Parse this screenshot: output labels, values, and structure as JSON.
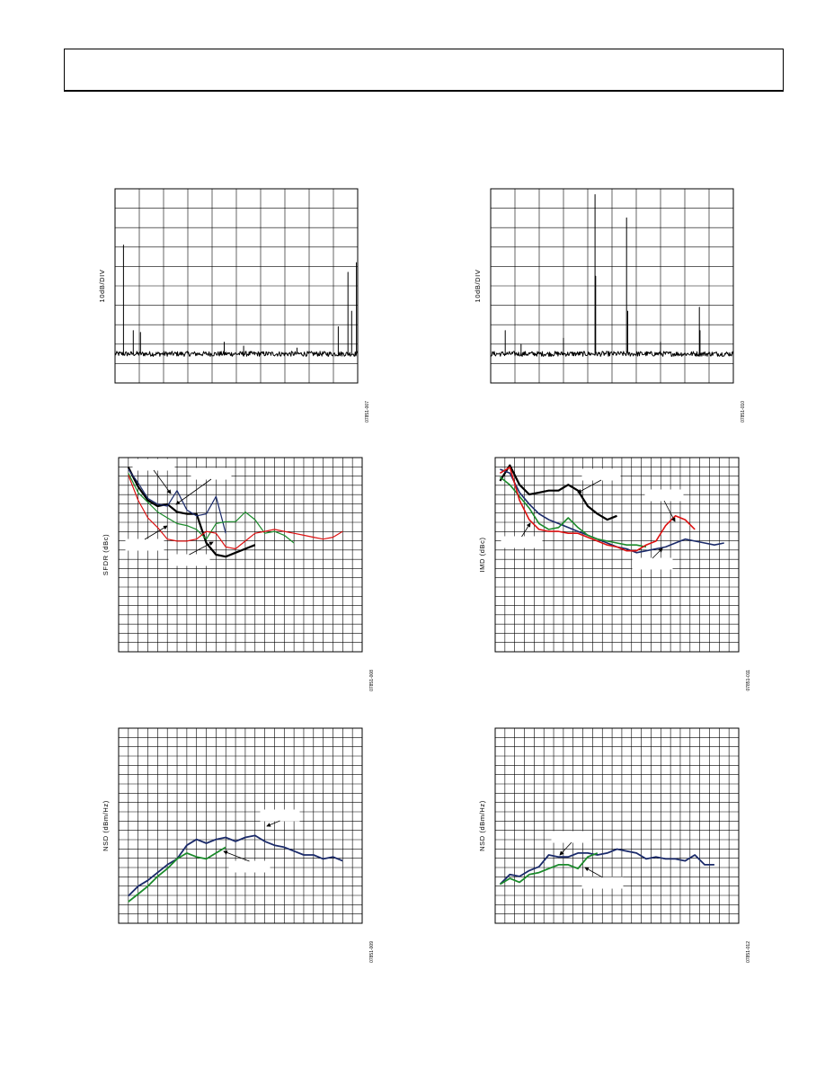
{
  "page": {
    "header_text": ""
  },
  "chart_data": [
    {
      "id": "spectrum-1",
      "type": "line",
      "ylabel": "10dB/DIV",
      "figure_id": "07851-007",
      "grid": true,
      "xgrid_divisions": 10,
      "ygrid_divisions": 10,
      "xlim": [
        0,
        100
      ],
      "ylim": [
        0,
        100
      ],
      "series": [
        {
          "color": "#000000",
          "width": 1,
          "noise_floor": 15,
          "noise_amplitude": 1.3,
          "spurs": [
            [
              3.5,
              56
            ],
            [
              7.5,
              12
            ],
            [
              10.5,
              11
            ],
            [
              45,
              6
            ],
            [
              53,
              4
            ],
            [
              75,
              3
            ],
            [
              92,
              14
            ],
            [
              96,
              42
            ],
            [
              97.5,
              22
            ],
            [
              99.5,
              47
            ]
          ]
        }
      ]
    },
    {
      "id": "spectrum-2",
      "type": "line",
      "ylabel": "10dB/DIV",
      "figure_id": "07851-010",
      "grid": true,
      "xgrid_divisions": 10,
      "ygrid_divisions": 10,
      "xlim": [
        0,
        100
      ],
      "ylim": [
        0,
        100
      ],
      "series": [
        {
          "color": "#000000",
          "width": 1,
          "noise_floor": 15,
          "noise_amplitude": 1.3,
          "spurs": [
            [
              6,
              12
            ],
            [
              12.5,
              5
            ],
            [
              30,
              8
            ],
            [
              43,
              82
            ],
            [
              43.3,
              40
            ],
            [
              56,
              70
            ],
            [
              56.4,
              22
            ],
            [
              70,
              6
            ],
            [
              86,
              24
            ],
            [
              86.3,
              12
            ]
          ]
        }
      ]
    },
    {
      "id": "sfdr-chart",
      "type": "line",
      "ylabel": "SFDR (dBc)",
      "figure_id": "07851-008",
      "grid": true,
      "xgrid_divisions": 25,
      "ygrid_divisions": 21,
      "xlim": [
        0,
        100
      ],
      "ylim": [
        0,
        100
      ],
      "series": [
        {
          "color": "#000000",
          "width": 2.2,
          "points": [
            [
              4,
              95
            ],
            [
              8,
              85
            ],
            [
              12,
              78
            ],
            [
              16,
              75
            ],
            [
              20,
              76
            ],
            [
              24,
              72
            ],
            [
              28,
              71
            ],
            [
              32,
              71
            ],
            [
              36,
              56
            ],
            [
              40,
              50
            ],
            [
              44,
              49
            ],
            [
              48,
              51
            ],
            [
              52,
              53
            ],
            [
              56,
              55
            ]
          ]
        },
        {
          "color": "#1a2a6a",
          "width": 1.2,
          "points": [
            [
              4,
              94
            ],
            [
              8,
              87
            ],
            [
              12,
              79
            ],
            [
              16,
              76
            ],
            [
              20,
              75
            ],
            [
              24,
              83
            ],
            [
              28,
              73
            ],
            [
              32,
              70
            ],
            [
              36,
              71
            ],
            [
              40,
              80
            ],
            [
              44,
              61
            ]
          ]
        },
        {
          "color": "#1a8a2a",
          "width": 1.2,
          "points": [
            [
              4,
              92
            ],
            [
              8,
              82
            ],
            [
              12,
              77
            ],
            [
              16,
              72
            ],
            [
              20,
              69
            ],
            [
              24,
              66
            ],
            [
              28,
              65
            ],
            [
              32,
              63
            ],
            [
              36,
              58
            ],
            [
              40,
              66
            ],
            [
              44,
              67
            ],
            [
              48,
              67
            ],
            [
              52,
              72
            ],
            [
              56,
              68
            ],
            [
              60,
              61
            ],
            [
              64,
              62
            ],
            [
              68,
              60
            ],
            [
              72,
              56
            ]
          ]
        },
        {
          "color": "#dd1111",
          "width": 1.2,
          "points": [
            [
              4,
              91
            ],
            [
              8,
              78
            ],
            [
              12,
              69
            ],
            [
              16,
              64
            ],
            [
              20,
              58
            ],
            [
              24,
              57
            ],
            [
              28,
              57
            ],
            [
              32,
              58
            ],
            [
              36,
              62
            ],
            [
              40,
              61
            ],
            [
              44,
              54
            ],
            [
              48,
              53
            ],
            [
              52,
              57
            ],
            [
              56,
              61
            ],
            [
              60,
              62
            ],
            [
              64,
              63
            ],
            [
              68,
              62
            ],
            [
              72,
              61
            ],
            [
              76,
              60
            ],
            [
              80,
              59
            ],
            [
              84,
              58
            ],
            [
              88,
              59
            ],
            [
              92,
              62
            ]
          ]
        }
      ]
    },
    {
      "id": "imd-chart",
      "type": "line",
      "ylabel": "IMD (dBc)",
      "figure_id": "07851-011",
      "grid": true,
      "xgrid_divisions": 25,
      "ygrid_divisions": 21,
      "xlim": [
        0,
        100
      ],
      "ylim": [
        0,
        100
      ],
      "series": [
        {
          "color": "#000000",
          "width": 2.2,
          "points": [
            [
              2,
              88
            ],
            [
              6,
              96
            ],
            [
              10,
              86
            ],
            [
              14,
              81
            ],
            [
              18,
              82
            ],
            [
              22,
              83
            ],
            [
              26,
              83
            ],
            [
              30,
              86
            ],
            [
              34,
              83
            ],
            [
              38,
              75
            ],
            [
              42,
              71
            ],
            [
              46,
              68
            ],
            [
              50,
              70
            ]
          ]
        },
        {
          "color": "#1a2a6a",
          "width": 1.6,
          "points": [
            [
              2,
              94
            ],
            [
              6,
              92
            ],
            [
              10,
              82
            ],
            [
              14,
              76
            ],
            [
              18,
              71
            ],
            [
              22,
              68
            ],
            [
              26,
              66
            ],
            [
              30,
              64
            ],
            [
              34,
              62
            ],
            [
              38,
              60
            ],
            [
              42,
              58
            ],
            [
              46,
              56
            ],
            [
              50,
              54
            ],
            [
              54,
              53
            ],
            [
              58,
              51
            ],
            [
              62,
              52
            ],
            [
              66,
              53
            ],
            [
              70,
              54
            ],
            [
              74,
              56
            ],
            [
              78,
              58
            ],
            [
              82,
              57
            ],
            [
              86,
              56
            ],
            [
              90,
              55
            ],
            [
              94,
              56
            ]
          ]
        },
        {
          "color": "#1a8a2a",
          "width": 1.6,
          "points": [
            [
              2,
              90
            ],
            [
              6,
              86
            ],
            [
              10,
              80
            ],
            [
              14,
              74
            ],
            [
              18,
              66
            ],
            [
              22,
              63
            ],
            [
              26,
              64
            ],
            [
              30,
              69
            ],
            [
              34,
              64
            ],
            [
              38,
              60
            ],
            [
              42,
              58
            ],
            [
              46,
              57
            ],
            [
              50,
              56
            ],
            [
              54,
              55
            ],
            [
              58,
              55
            ],
            [
              62,
              54
            ]
          ]
        },
        {
          "color": "#dd1111",
          "width": 1.6,
          "points": [
            [
              2,
              92
            ],
            [
              6,
              95
            ],
            [
              10,
              78
            ],
            [
              14,
              68
            ],
            [
              18,
              63
            ],
            [
              22,
              62
            ],
            [
              26,
              62
            ],
            [
              30,
              61
            ],
            [
              34,
              61
            ],
            [
              38,
              59
            ],
            [
              42,
              57
            ],
            [
              46,
              55
            ],
            [
              50,
              54
            ],
            [
              54,
              52
            ],
            [
              58,
              52
            ],
            [
              62,
              55
            ],
            [
              66,
              57
            ],
            [
              70,
              65
            ],
            [
              74,
              70
            ],
            [
              78,
              68
            ],
            [
              82,
              63
            ]
          ]
        }
      ]
    },
    {
      "id": "nsd-chart-1",
      "type": "line",
      "ylabel": "NSD (dBm/Hz)",
      "figure_id": "07851-009",
      "grid": true,
      "xgrid_divisions": 25,
      "ygrid_divisions": 21,
      "xlim": [
        0,
        100
      ],
      "ylim": [
        0,
        100
      ],
      "series": [
        {
          "color": "#1a2a6a",
          "width": 1.8,
          "points": [
            [
              4,
              14
            ],
            [
              8,
              19
            ],
            [
              12,
              22
            ],
            [
              16,
              26
            ],
            [
              20,
              30
            ],
            [
              24,
              33
            ],
            [
              28,
              40
            ],
            [
              32,
              43
            ],
            [
              36,
              41
            ],
            [
              40,
              43
            ],
            [
              44,
              44
            ],
            [
              48,
              42
            ],
            [
              52,
              44
            ],
            [
              56,
              45
            ],
            [
              60,
              42
            ],
            [
              64,
              40
            ],
            [
              68,
              39
            ],
            [
              72,
              37
            ],
            [
              76,
              35
            ],
            [
              80,
              35
            ],
            [
              84,
              33
            ],
            [
              88,
              34
            ],
            [
              92,
              32
            ]
          ]
        },
        {
          "color": "#1a8a2a",
          "width": 1.8,
          "points": [
            [
              4,
              11
            ],
            [
              8,
              15
            ],
            [
              12,
              19
            ],
            [
              16,
              24
            ],
            [
              20,
              28
            ],
            [
              24,
              33
            ],
            [
              28,
              36
            ],
            [
              32,
              34
            ],
            [
              36,
              33
            ],
            [
              40,
              36
            ],
            [
              44,
              39
            ]
          ]
        }
      ]
    },
    {
      "id": "nsd-chart-2",
      "type": "line",
      "ylabel": "NSD (dBm/Hz)",
      "figure_id": "07851-012",
      "grid": true,
      "xgrid_divisions": 25,
      "ygrid_divisions": 21,
      "xlim": [
        0,
        100
      ],
      "ylim": [
        0,
        100
      ],
      "series": [
        {
          "color": "#1a2a6a",
          "width": 1.8,
          "points": [
            [
              2,
              20
            ],
            [
              6,
              25
            ],
            [
              10,
              24
            ],
            [
              14,
              27
            ],
            [
              18,
              29
            ],
            [
              22,
              35
            ],
            [
              26,
              34
            ],
            [
              30,
              34
            ],
            [
              34,
              36
            ],
            [
              38,
              36
            ],
            [
              42,
              35
            ],
            [
              46,
              36
            ],
            [
              50,
              38
            ],
            [
              54,
              37
            ],
            [
              58,
              36
            ],
            [
              62,
              33
            ],
            [
              66,
              34
            ],
            [
              70,
              33
            ],
            [
              74,
              33
            ],
            [
              78,
              32
            ],
            [
              82,
              35
            ],
            [
              86,
              30
            ],
            [
              90,
              30
            ]
          ]
        },
        {
          "color": "#1a8a2a",
          "width": 1.8,
          "points": [
            [
              2,
              20
            ],
            [
              6,
              23
            ],
            [
              10,
              21
            ],
            [
              14,
              25
            ],
            [
              18,
              26
            ],
            [
              22,
              28
            ],
            [
              26,
              30
            ],
            [
              30,
              30
            ],
            [
              34,
              28
            ],
            [
              38,
              34
            ],
            [
              42,
              36
            ]
          ]
        }
      ]
    }
  ]
}
